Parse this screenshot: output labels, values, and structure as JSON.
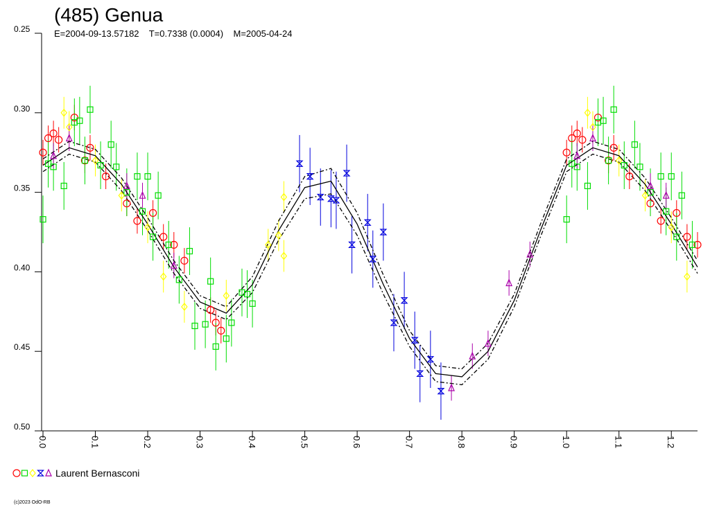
{
  "chart_data": {
    "type": "scatter",
    "title": "(485) Genua",
    "subtitle": "E=2004-09-13.57182    T=0.7338 (0.0004)    M=2005-04-24",
    "legend_label": "Laurent Bernasconi",
    "footer": "(c)2023 OdO-RB",
    "xlim": [
      0,
      1.25
    ],
    "ylim": [
      0.25,
      0.5
    ],
    "y_inverted": true,
    "xticks": [
      {
        "value": 0,
        "label": "0.0"
      },
      0.1,
      0.2,
      0.3,
      0.4,
      0.5,
      0.6,
      0.7,
      0.8,
      0.9,
      {
        "value": 1,
        "label": "1.0"
      },
      1.1,
      1.2
    ],
    "yticks": [
      0.25,
      {
        "value": 0.3,
        "label": "0.30"
      },
      0.35,
      {
        "value": 0.4,
        "label": "0.40"
      },
      0.45,
      {
        "value": 0.5,
        "label": "0.50"
      }
    ],
    "series": [
      {
        "marker": "circle",
        "color": "#ff0000",
        "x": [
          0.0,
          0.01,
          0.02,
          0.03,
          0.06,
          0.08,
          0.09,
          0.12,
          0.16,
          0.18,
          0.21,
          0.23,
          0.25,
          0.27,
          0.32,
          0.33,
          0.34,
          1.0,
          1.01,
          1.02,
          1.03,
          1.06,
          1.08,
          1.09,
          1.12,
          1.16,
          1.18,
          1.21,
          1.23,
          1.25
        ],
        "values": [
          0.325,
          0.316,
          0.313,
          0.317,
          0.303,
          0.33,
          0.322,
          0.34,
          0.357,
          0.368,
          0.363,
          0.378,
          0.383,
          0.393,
          0.424,
          0.432,
          0.437,
          0.325,
          0.316,
          0.313,
          0.317,
          0.303,
          0.33,
          0.322,
          0.34,
          0.357,
          0.368,
          0.363,
          0.378,
          0.383
        ],
        "errors": [
          0.008,
          0.008,
          0.008,
          0.008,
          0.008,
          0.008,
          0.008,
          0.008,
          0.008,
          0.008,
          0.008,
          0.008,
          0.008,
          0.008,
          0.008,
          0.008,
          0.008,
          0.008,
          0.008,
          0.008,
          0.008,
          0.008,
          0.008,
          0.008,
          0.008,
          0.008,
          0.008,
          0.008,
          0.008,
          0.008
        ]
      },
      {
        "marker": "square",
        "color": "#00dd00",
        "x": [
          0.0,
          0.01,
          0.02,
          0.04,
          0.06,
          0.07,
          0.08,
          0.09,
          0.11,
          0.13,
          0.14,
          0.16,
          0.18,
          0.19,
          0.2,
          0.21,
          0.22,
          0.24,
          0.26,
          0.28,
          0.29,
          0.31,
          0.32,
          0.33,
          0.35,
          0.36,
          0.38,
          0.39,
          0.4,
          1.0,
          1.01,
          1.02,
          1.04,
          1.06,
          1.07,
          1.08,
          1.09,
          1.11,
          1.13,
          1.14,
          1.16,
          1.18,
          1.19,
          1.2,
          1.21,
          1.22,
          1.24
        ],
        "values": [
          0.367,
          0.332,
          0.334,
          0.346,
          0.306,
          0.305,
          0.33,
          0.298,
          0.333,
          0.32,
          0.334,
          0.35,
          0.34,
          0.362,
          0.34,
          0.378,
          0.352,
          0.383,
          0.405,
          0.387,
          0.434,
          0.433,
          0.406,
          0.447,
          0.442,
          0.432,
          0.413,
          0.414,
          0.42,
          0.367,
          0.332,
          0.334,
          0.346,
          0.306,
          0.305,
          0.33,
          0.298,
          0.333,
          0.32,
          0.334,
          0.35,
          0.34,
          0.362,
          0.34,
          0.378,
          0.352,
          0.383
        ],
        "errors": [
          0.015,
          0.015,
          0.015,
          0.015,
          0.015,
          0.015,
          0.015,
          0.015,
          0.015,
          0.015,
          0.015,
          0.015,
          0.015,
          0.015,
          0.015,
          0.015,
          0.015,
          0.015,
          0.015,
          0.015,
          0.015,
          0.015,
          0.015,
          0.015,
          0.015,
          0.015,
          0.015,
          0.015,
          0.015,
          0.015,
          0.015,
          0.015,
          0.015,
          0.015,
          0.015,
          0.015,
          0.015,
          0.015,
          0.015,
          0.015,
          0.015,
          0.015,
          0.015,
          0.015,
          0.015,
          0.015,
          0.015
        ]
      },
      {
        "marker": "diamond",
        "color": "#ffff00",
        "x": [
          0.04,
          0.05,
          0.1,
          0.15,
          0.2,
          0.23,
          0.27,
          0.35,
          0.43,
          0.45,
          0.46,
          0.46,
          1.04,
          1.05,
          1.1,
          1.15,
          1.2,
          1.23
        ],
        "values": [
          0.3,
          0.309,
          0.33,
          0.352,
          0.372,
          0.403,
          0.422,
          0.415,
          0.383,
          0.377,
          0.39,
          0.353,
          0.3,
          0.309,
          0.33,
          0.352,
          0.372,
          0.403
        ],
        "errors": [
          0.01,
          0.01,
          0.01,
          0.01,
          0.01,
          0.01,
          0.01,
          0.01,
          0.01,
          0.01,
          0.01,
          0.01,
          0.01,
          0.01,
          0.01,
          0.01,
          0.01,
          0.01
        ]
      },
      {
        "marker": "hourglass",
        "color": "#0000dd",
        "x": [
          0.49,
          0.51,
          0.53,
          0.55,
          0.56,
          0.58,
          0.59,
          0.62,
          0.63,
          0.65,
          0.67,
          0.69,
          0.71,
          0.72,
          0.74,
          0.76
        ],
        "values": [
          0.332,
          0.34,
          0.353,
          0.354,
          0.355,
          0.338,
          0.383,
          0.369,
          0.392,
          0.375,
          0.432,
          0.418,
          0.443,
          0.464,
          0.455,
          0.475
        ],
        "errors": [
          0.018,
          0.018,
          0.018,
          0.018,
          0.018,
          0.018,
          0.018,
          0.018,
          0.018,
          0.018,
          0.018,
          0.018,
          0.018,
          0.018,
          0.018,
          0.018
        ]
      },
      {
        "marker": "triangle",
        "color": "#aa00aa",
        "x": [
          0.02,
          0.05,
          0.16,
          0.19,
          0.25,
          0.78,
          0.82,
          0.85,
          0.89,
          0.93,
          1.02,
          1.05,
          1.16,
          1.19
        ],
        "values": [
          0.327,
          0.316,
          0.346,
          0.352,
          0.396,
          0.473,
          0.453,
          0.445,
          0.407,
          0.389,
          0.327,
          0.316,
          0.346,
          0.352
        ],
        "errors": [
          0.008,
          0.008,
          0.008,
          0.008,
          0.008,
          0.008,
          0.008,
          0.008,
          0.008,
          0.008,
          0.008,
          0.008,
          0.008,
          0.008
        ]
      }
    ],
    "fit": {
      "color": "#000000",
      "x": [
        0,
        0.05,
        0.1,
        0.15,
        0.2,
        0.25,
        0.3,
        0.35,
        0.4,
        0.45,
        0.5,
        0.55,
        0.6,
        0.65,
        0.7,
        0.75,
        0.8,
        0.85,
        0.9,
        0.95,
        1,
        1.05,
        1.1,
        1.15,
        1.2,
        1.25
      ],
      "values": [
        0.333,
        0.322,
        0.327,
        0.345,
        0.37,
        0.397,
        0.419,
        0.426,
        0.408,
        0.374,
        0.347,
        0.343,
        0.37,
        0.408,
        0.442,
        0.464,
        0.466,
        0.45,
        0.418,
        0.374,
        0.333,
        0.322,
        0.327,
        0.345,
        0.37,
        0.397
      ],
      "lower": [
        0.329,
        0.318,
        0.323,
        0.341,
        0.366,
        0.393,
        0.415,
        0.422,
        0.403,
        0.368,
        0.34,
        0.335,
        0.363,
        0.402,
        0.437,
        0.459,
        0.461,
        0.445,
        0.414,
        0.37,
        0.329,
        0.318,
        0.323,
        0.341,
        0.366,
        0.393
      ],
      "upper": [
        0.337,
        0.326,
        0.331,
        0.349,
        0.374,
        0.401,
        0.423,
        0.43,
        0.413,
        0.38,
        0.354,
        0.351,
        0.377,
        0.414,
        0.447,
        0.469,
        0.471,
        0.455,
        0.422,
        0.378,
        0.337,
        0.326,
        0.331,
        0.349,
        0.374,
        0.401
      ]
    }
  }
}
